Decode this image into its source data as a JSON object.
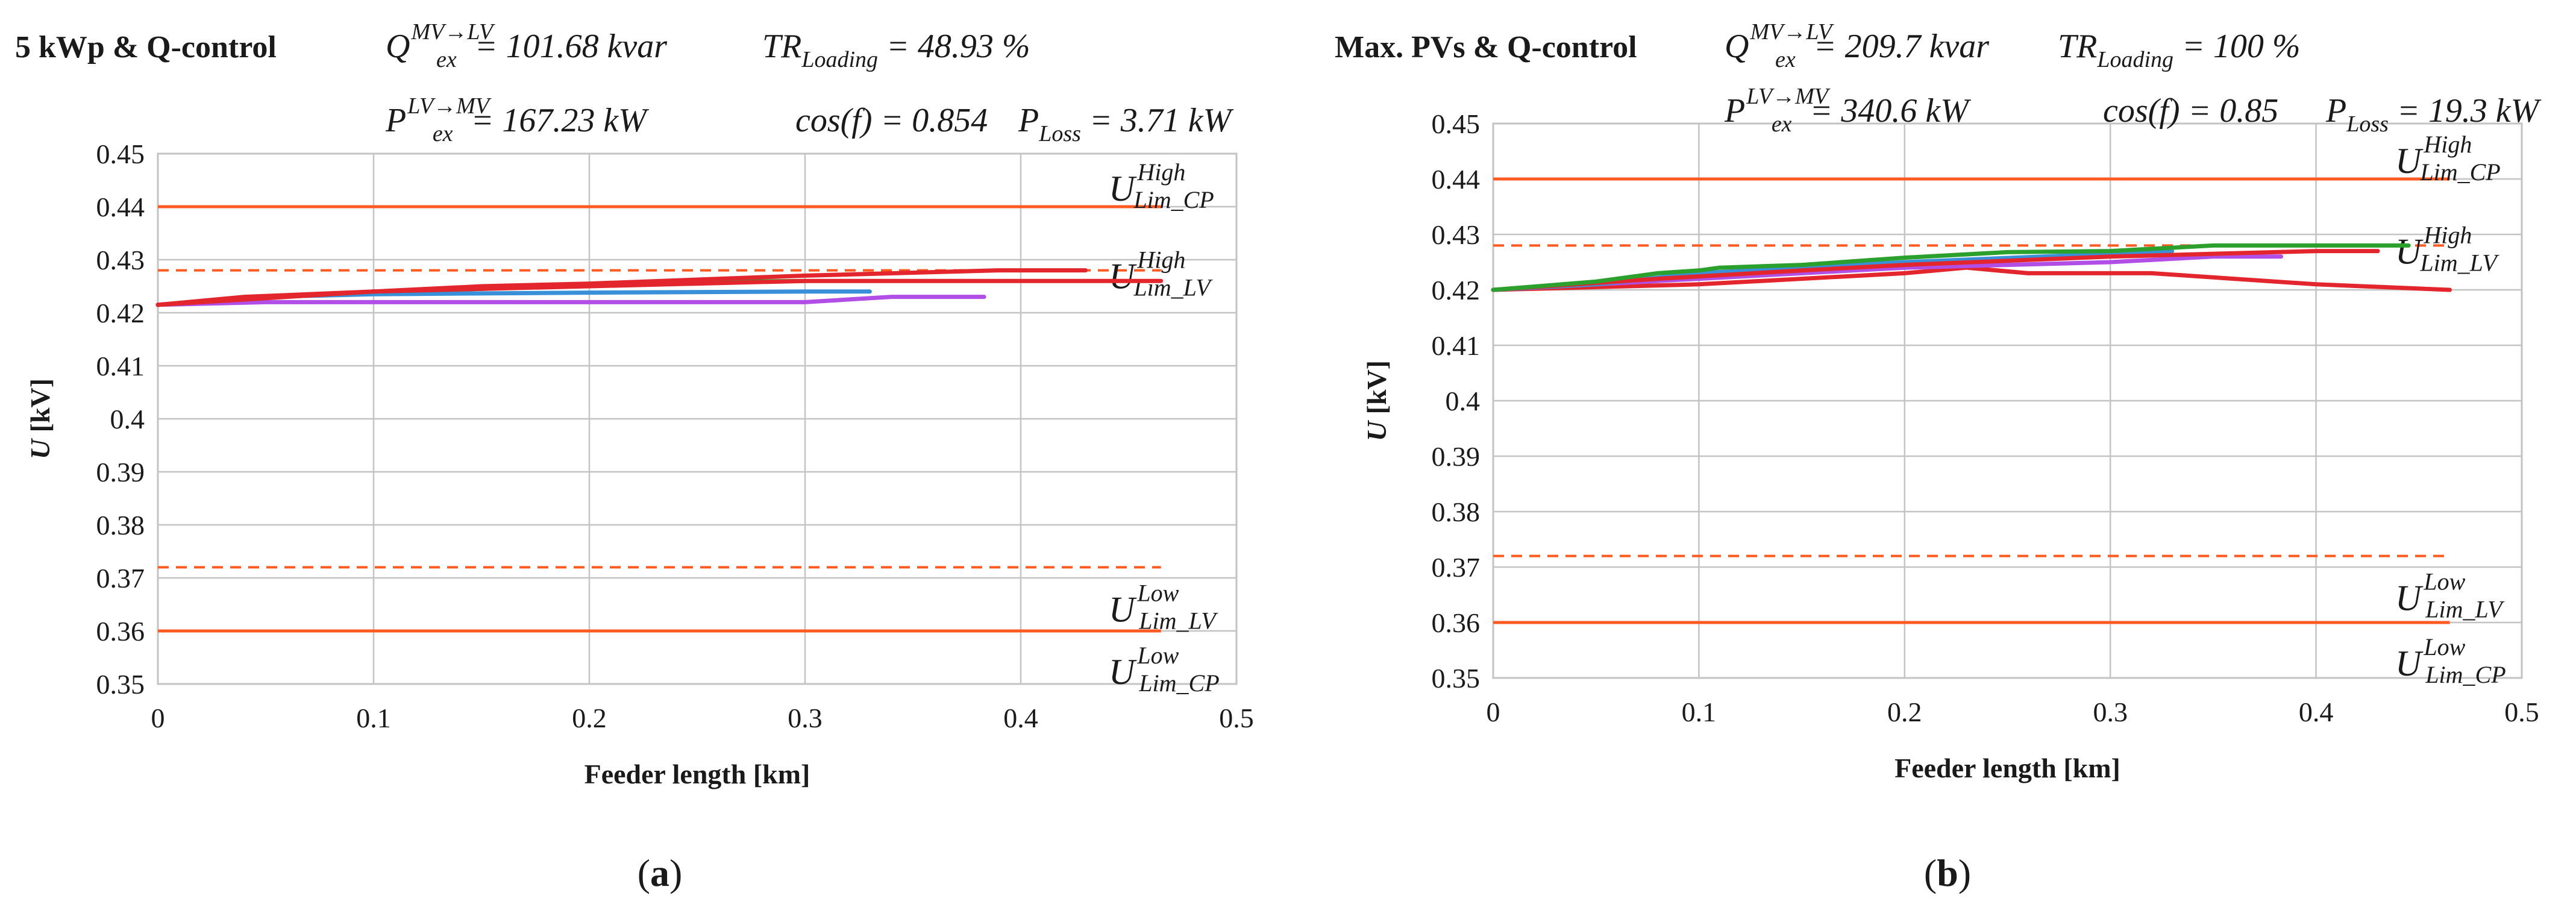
{
  "chart_data": [
    {
      "id": "a",
      "type": "line",
      "caption": "a",
      "title": "5 kWp & Q-control",
      "annotations": {
        "q_ex": {
          "sym": "Q",
          "sub": "ex",
          "sup": "MV→LV",
          "value": "= 101.68 kvar"
        },
        "tr": {
          "sym": "TR",
          "sub": "Loading",
          "value": "= 48.93 %"
        },
        "p_ex": {
          "sym": "P",
          "sub": "ex",
          "sup": "LV→MV",
          "value": "= 167.23 kW"
        },
        "cos": {
          "text": "cos(f) = 0.854"
        },
        "p_loss": {
          "sym": "P",
          "sub": "Loss",
          "value": "= 3.71 kW"
        }
      },
      "xlabel": "Feeder length [km]",
      "ylabel": "U [kV]",
      "xlim": [
        0,
        0.5
      ],
      "ylim": [
        0.35,
        0.45
      ],
      "xticks": [
        "0",
        "0.1",
        "0.2",
        "0.3",
        "0.4",
        "0.5"
      ],
      "yticks": [
        "0.35",
        "0.36",
        "0.37",
        "0.38",
        "0.39",
        "0.4",
        "0.41",
        "0.42",
        "0.43",
        "0.44",
        "0.45"
      ],
      "grid": true,
      "limits": [
        {
          "y": 0.44,
          "style": "solid",
          "color": "#ff5a1f",
          "label": {
            "sym": "U",
            "sup": "High",
            "sub": "Lim_CP"
          }
        },
        {
          "y": 0.428,
          "style": "dashed",
          "color": "#ff5a1f",
          "label": {
            "sym": "U",
            "sup": "High",
            "sub": "Lim_LV"
          }
        },
        {
          "y": 0.372,
          "style": "dashed",
          "color": "#ff5a1f",
          "label": {
            "sym": "U",
            "sup": "Low",
            "sub": "Lim_LV"
          }
        },
        {
          "y": 0.36,
          "style": "solid",
          "color": "#ff5a1f",
          "label": {
            "sym": "U",
            "sup": "Low",
            "sub": "Lim_CP"
          }
        }
      ],
      "limit_xmax": 0.465,
      "series": [
        {
          "color": "#b14ee6",
          "points": [
            [
              0,
              0.4215
            ],
            [
              0.05,
              0.422
            ],
            [
              0.1,
              0.422
            ],
            [
              0.2,
              0.422
            ],
            [
              0.3,
              0.422
            ],
            [
              0.34,
              0.423
            ],
            [
              0.383,
              0.423
            ]
          ]
        },
        {
          "color": "#3a8fd9",
          "points": [
            [
              0,
              0.4215
            ],
            [
              0.05,
              0.423
            ],
            [
              0.1,
              0.4235
            ],
            [
              0.2,
              0.4238
            ],
            [
              0.3,
              0.424
            ],
            [
              0.33,
              0.424
            ]
          ]
        },
        {
          "color": "#2ca02c",
          "points": [
            [
              0,
              0.4215
            ],
            [
              0.05,
              0.4228
            ],
            [
              0.1,
              0.424
            ],
            [
              0.15,
              0.4245
            ],
            [
              0.2,
              0.4252
            ],
            [
              0.25,
              0.4258
            ],
            [
              0.3,
              0.426
            ]
          ]
        },
        {
          "color": "#e3262d",
          "points": [
            [
              0,
              0.4215
            ],
            [
              0.04,
              0.423
            ],
            [
              0.1,
              0.424
            ],
            [
              0.15,
              0.425
            ],
            [
              0.2,
              0.4255
            ],
            [
              0.3,
              0.427
            ],
            [
              0.39,
              0.428
            ],
            [
              0.43,
              0.428
            ]
          ]
        },
        {
          "color": "#e3262d",
          "points": [
            [
              0,
              0.4215
            ],
            [
              0.1,
              0.424
            ],
            [
              0.2,
              0.425
            ],
            [
              0.3,
              0.426
            ],
            [
              0.4,
              0.426
            ],
            [
              0.465,
              0.426
            ]
          ]
        }
      ]
    },
    {
      "id": "b",
      "type": "line",
      "caption": "b",
      "title": "Max. PVs & Q-control",
      "annotations": {
        "q_ex": {
          "sym": "Q",
          "sub": "ex",
          "sup": "MV→LV",
          "value": "= 209.7 kvar"
        },
        "tr": {
          "sym": "TR",
          "sub": "Loading",
          "value": "= 100 %"
        },
        "p_ex": {
          "sym": "P",
          "sub": "ex",
          "sup": "LV→MV",
          "value": "= 340.6 kW"
        },
        "cos": {
          "text": "cos(f) = 0.85"
        },
        "p_loss": {
          "sym": "P",
          "sub": "Loss",
          "value": "= 19.3 kW"
        }
      },
      "xlabel": "Feeder length [km]",
      "ylabel": "U [kV]",
      "xlim": [
        0,
        0.5
      ],
      "ylim": [
        0.35,
        0.45
      ],
      "xticks": [
        "0",
        "0.1",
        "0.2",
        "0.3",
        "0.4",
        "0.5"
      ],
      "yticks": [
        "0.35",
        "0.36",
        "0.37",
        "0.38",
        "0.39",
        "0.4",
        "0.41",
        "0.42",
        "0.43",
        "0.44",
        "0.45"
      ],
      "grid": true,
      "limits": [
        {
          "y": 0.44,
          "style": "solid",
          "color": "#ff5a1f",
          "label": {
            "sym": "U",
            "sup": "High",
            "sub": "Lim_CP"
          }
        },
        {
          "y": 0.428,
          "style": "dashed",
          "color": "#ff5a1f",
          "label": {
            "sym": "U",
            "sup": "High",
            "sub": "Lim_LV"
          }
        },
        {
          "y": 0.372,
          "style": "dashed",
          "color": "#ff5a1f",
          "label": {
            "sym": "U",
            "sup": "Low",
            "sub": "Lim_LV"
          }
        },
        {
          "y": 0.36,
          "style": "solid",
          "color": "#ff5a1f",
          "label": {
            "sym": "U",
            "sup": "Low",
            "sub": "Lim_CP"
          }
        }
      ],
      "limit_xmax": 0.465,
      "series": [
        {
          "color": "#e3262d",
          "points": [
            [
              0,
              0.42
            ],
            [
              0.1,
              0.421
            ],
            [
              0.2,
              0.423
            ],
            [
              0.23,
              0.424
            ],
            [
              0.26,
              0.423
            ],
            [
              0.32,
              0.423
            ],
            [
              0.4,
              0.421
            ],
            [
              0.465,
              0.42
            ]
          ]
        },
        {
          "color": "#b14ee6",
          "points": [
            [
              0,
              0.42
            ],
            [
              0.1,
              0.422
            ],
            [
              0.2,
              0.424
            ],
            [
              0.3,
              0.425
            ],
            [
              0.35,
              0.426
            ],
            [
              0.383,
              0.426
            ]
          ]
        },
        {
          "color": "#3a8fd9",
          "points": [
            [
              0,
              0.42
            ],
            [
              0.05,
              0.421
            ],
            [
              0.1,
              0.423
            ],
            [
              0.2,
              0.425
            ],
            [
              0.3,
              0.4265
            ],
            [
              0.33,
              0.427
            ]
          ]
        },
        {
          "color": "#e3262d",
          "points": [
            [
              0,
              0.42
            ],
            [
              0.08,
              0.422
            ],
            [
              0.15,
              0.4235
            ],
            [
              0.2,
              0.4245
            ],
            [
              0.3,
              0.426
            ],
            [
              0.4,
              0.427
            ],
            [
              0.43,
              0.427
            ]
          ]
        },
        {
          "color": "#2ca02c",
          "points": [
            [
              0,
              0.42
            ],
            [
              0.05,
              0.4215
            ],
            [
              0.08,
              0.423
            ],
            [
              0.1,
              0.4235
            ],
            [
              0.11,
              0.424
            ],
            [
              0.15,
              0.4245
            ],
            [
              0.2,
              0.4258
            ],
            [
              0.25,
              0.4268
            ],
            [
              0.3,
              0.427
            ],
            [
              0.35,
              0.428
            ],
            [
              0.4,
              0.428
            ],
            [
              0.445,
              0.428
            ]
          ]
        }
      ]
    }
  ]
}
